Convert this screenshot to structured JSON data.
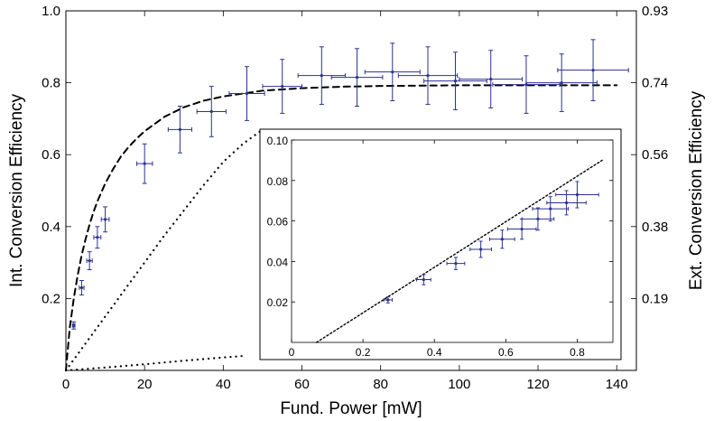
{
  "chart_data": [
    {
      "type": "scatter",
      "title": "",
      "xlabel": "Fund. Power [mW]",
      "ylabel": "Int. Conversion Efficiency",
      "y2label": "Ext. Conversion Efficiency",
      "xlim": [
        0,
        145
      ],
      "ylim": [
        0,
        1.0
      ],
      "xticks": [
        "0",
        "20",
        "40",
        "60",
        "80",
        "100",
        "120",
        "140"
      ],
      "yticks": [
        "0.2",
        "0.4",
        "0.6",
        "0.8",
        "1.0"
      ],
      "y2ticks": [
        "0.19",
        "0.38",
        "0.56",
        "0.74",
        "0.93"
      ],
      "y2tick_positions": [
        0.2,
        0.4,
        0.6,
        0.8,
        1.0
      ],
      "grid": false,
      "marker_color": "#2e3192",
      "series": [
        {
          "kind": "points-with-error-bars",
          "points": [
            {
              "x": 2,
              "y": 0.125,
              "xerr": 0.3,
              "yerr": 0.01
            },
            {
              "x": 4,
              "y": 0.23,
              "xerr": 0.6,
              "yerr": 0.02
            },
            {
              "x": 6,
              "y": 0.305,
              "xerr": 0.7,
              "yerr": 0.025
            },
            {
              "x": 8,
              "y": 0.37,
              "xerr": 0.9,
              "yerr": 0.03
            },
            {
              "x": 10,
              "y": 0.42,
              "xerr": 1.0,
              "yerr": 0.035
            },
            {
              "x": 20,
              "y": 0.575,
              "xerr": 2.0,
              "yerr": 0.055
            },
            {
              "x": 29,
              "y": 0.67,
              "xerr": 3.0,
              "yerr": 0.065
            },
            {
              "x": 37,
              "y": 0.72,
              "xerr": 3.7,
              "yerr": 0.07
            },
            {
              "x": 46,
              "y": 0.77,
              "xerr": 4.5,
              "yerr": 0.075
            },
            {
              "x": 55,
              "y": 0.79,
              "xerr": 5.0,
              "yerr": 0.075
            },
            {
              "x": 65,
              "y": 0.82,
              "xerr": 6.0,
              "yerr": 0.08
            },
            {
              "x": 74,
              "y": 0.815,
              "xerr": 6.5,
              "yerr": 0.08
            },
            {
              "x": 83,
              "y": 0.83,
              "xerr": 7.0,
              "yerr": 0.08
            },
            {
              "x": 92,
              "y": 0.82,
              "xerr": 7.5,
              "yerr": 0.08
            },
            {
              "x": 99,
              "y": 0.805,
              "xerr": 8.0,
              "yerr": 0.08
            },
            {
              "x": 108,
              "y": 0.81,
              "xerr": 8.0,
              "yerr": 0.08
            },
            {
              "x": 117,
              "y": 0.795,
              "xerr": 8.5,
              "yerr": 0.08
            },
            {
              "x": 126,
              "y": 0.8,
              "xerr": 9.0,
              "yerr": 0.08
            },
            {
              "x": 134,
              "y": 0.835,
              "xerr": 9.0,
              "yerr": 0.085
            }
          ]
        },
        {
          "kind": "dashed-curve",
          "x": [
            0,
            1,
            2,
            3,
            4,
            5,
            6,
            7,
            8,
            10,
            12,
            14,
            16,
            18,
            20,
            25,
            30,
            35,
            40,
            50,
            60,
            70,
            80,
            90,
            100,
            110,
            120,
            130,
            140
          ],
          "y": [
            0,
            0.12,
            0.2,
            0.265,
            0.32,
            0.365,
            0.405,
            0.44,
            0.47,
            0.52,
            0.56,
            0.595,
            0.622,
            0.645,
            0.665,
            0.705,
            0.732,
            0.75,
            0.762,
            0.778,
            0.785,
            0.789,
            0.791,
            0.792,
            0.793,
            0.793,
            0.793,
            0.793,
            0.793
          ]
        },
        {
          "kind": "dotted-curve",
          "x": [
            0,
            5,
            10,
            15,
            20,
            25,
            30,
            35,
            40,
            45,
            50
          ],
          "y": [
            0,
            0.075,
            0.15,
            0.225,
            0.3,
            0.375,
            0.445,
            0.515,
            0.58,
            0.63,
            0.67
          ]
        },
        {
          "kind": "dotted-curve",
          "x": [
            0,
            10,
            20,
            30,
            40,
            45
          ],
          "y": [
            0,
            0.008,
            0.017,
            0.027,
            0.036,
            0.04
          ]
        }
      ]
    },
    {
      "type": "scatter",
      "role": "inset",
      "title": "",
      "xlim": [
        0,
        0.9
      ],
      "ylim": [
        0,
        0.1
      ],
      "xticks": [
        "0",
        "0.2",
        "0.4",
        "0.6",
        "0.8"
      ],
      "yticks": [
        "0.02",
        "0.04",
        "0.06",
        "0.08",
        "0.10"
      ],
      "grid": false,
      "series": [
        {
          "kind": "points-with-error-bars",
          "points": [
            {
              "x": 0.27,
              "y": 0.021,
              "xerr": 0.012,
              "yerr": 0.0015
            },
            {
              "x": 0.37,
              "y": 0.031,
              "xerr": 0.02,
              "yerr": 0.0025
            },
            {
              "x": 0.46,
              "y": 0.039,
              "xerr": 0.025,
              "yerr": 0.003
            },
            {
              "x": 0.53,
              "y": 0.046,
              "xerr": 0.03,
              "yerr": 0.004
            },
            {
              "x": 0.59,
              "y": 0.051,
              "xerr": 0.035,
              "yerr": 0.0045
            },
            {
              "x": 0.645,
              "y": 0.056,
              "xerr": 0.04,
              "yerr": 0.005
            },
            {
              "x": 0.69,
              "y": 0.061,
              "xerr": 0.045,
              "yerr": 0.0055
            },
            {
              "x": 0.725,
              "y": 0.066,
              "xerr": 0.05,
              "yerr": 0.006
            },
            {
              "x": 0.77,
              "y": 0.069,
              "xerr": 0.055,
              "yerr": 0.006
            },
            {
              "x": 0.8,
              "y": 0.073,
              "xerr": 0.06,
              "yerr": 0.0065
            }
          ]
        },
        {
          "kind": "dotted-line",
          "x": [
            0.07,
            0.87
          ],
          "y": [
            0,
            0.09
          ]
        }
      ]
    }
  ]
}
